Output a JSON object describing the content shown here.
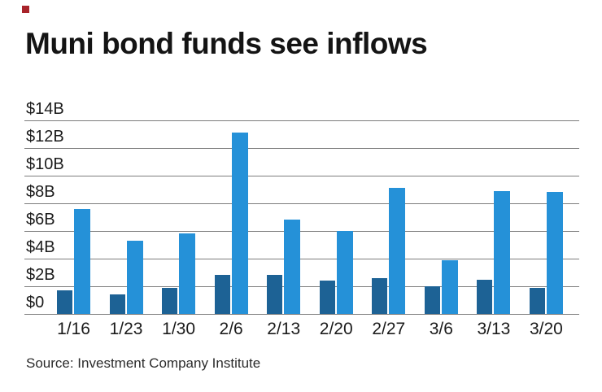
{
  "brand": {
    "logo_color": "#a8232a"
  },
  "title": "Muni bond funds see inflows",
  "source": "Source: Investment Company Institute",
  "chart_data": {
    "type": "bar",
    "title": "Muni bond funds see inflows",
    "categories": [
      "1/16",
      "1/23",
      "1/30",
      "2/6",
      "2/13",
      "2/20",
      "2/27",
      "3/6",
      "3/13",
      "3/20"
    ],
    "series": [
      {
        "name": "dark-blue-series",
        "color": "#1d6295",
        "values": [
          1.7,
          1.4,
          1.9,
          2.8,
          2.8,
          2.4,
          2.6,
          2.0,
          2.5,
          1.9
        ]
      },
      {
        "name": "light-blue-series",
        "color": "#2591d8",
        "values": [
          7.6,
          5.3,
          5.8,
          13.1,
          6.8,
          6.0,
          9.1,
          3.9,
          8.9,
          8.8
        ]
      }
    ],
    "y_ticks": [
      "$14B",
      "$12B",
      "$10B",
      "$8B",
      "$6B",
      "$4B",
      "$2B",
      "$0"
    ],
    "y_tick_values": [
      14,
      12,
      10,
      8,
      6,
      4,
      2,
      0
    ],
    "ylim": [
      0,
      14
    ],
    "unit": "billions of dollars",
    "grid": true,
    "gridline_color": "#7d7d7d",
    "legend": false,
    "xlabel": "",
    "ylabel": ""
  }
}
